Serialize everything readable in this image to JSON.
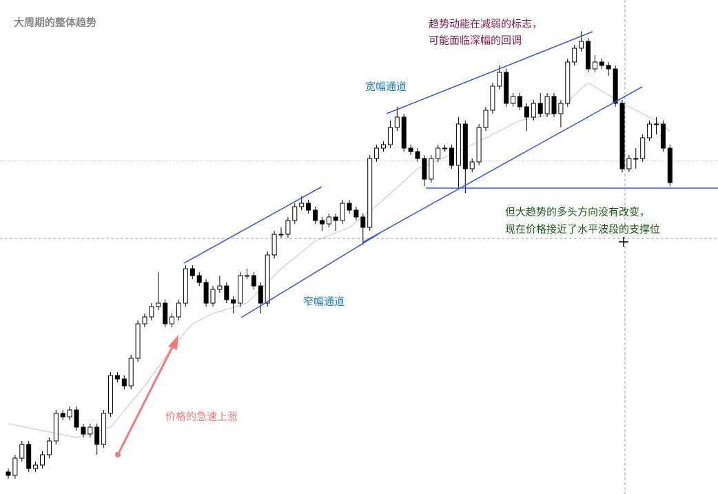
{
  "chart_data": {
    "type": "candlestick",
    "title": "大周期的整体趋势",
    "annotations": {
      "weakening": [
        "趋势动能在减弱的标志，",
        "可能面临深幅的回调"
      ],
      "wide_channel": "宽幅通道",
      "narrow_channel": "窄幅通道",
      "support": [
        "但大趋势的多头方向没有改变，",
        "现在价格接近了水平波段的支撑位"
      ],
      "surge": "价格的急速上涨"
    },
    "ylim": [
      0,
      71.7
    ],
    "bull_color": "#ffffff",
    "bear_color": "#000000",
    "ma_color": "#cccccc",
    "open": [
      3.2,
      2.7,
      5.2,
      7.2,
      3.7,
      4.2,
      5.7,
      7.7,
      11.7,
      11.2,
      12.2,
      9.7,
      8.7,
      9.7,
      7.2,
      11.7,
      17.2,
      16.7,
      15.7,
      19.7,
      24.7,
      25.7,
      27.2,
      27.7,
      24.7,
      25.7,
      27.7,
      32.7,
      31.7,
      30.7,
      27.7,
      29.7,
      30.2,
      28.2,
      27.7,
      31.7,
      31.7,
      30.2,
      27.7,
      34.7,
      37.7,
      37.7,
      39.7,
      41.7,
      42.2,
      41.2,
      39.7,
      39.2,
      40.2,
      39.7,
      42.2,
      41.2,
      40.2,
      38.7,
      48.7,
      50.2,
      50.7,
      53.2,
      54.7,
      50.2,
      49.7,
      48.7,
      45.7,
      48.7,
      50.2,
      50.2,
      47.7,
      53.7,
      47.2,
      48.2,
      53.2,
      55.7,
      59.2,
      61.2,
      56.7,
      57.7,
      56.2,
      54.7,
      56.7,
      55.2,
      57.7,
      55.2,
      56.7,
      62.7,
      64.7,
      65.7,
      61.7,
      62.7,
      62.2,
      61.7,
      56.7,
      47.2,
      48.7,
      48.7,
      51.7,
      53.7,
      53.7,
      50.2
    ],
    "high": [
      3.7,
      5.7,
      7.7,
      7.7,
      4.7,
      6.2,
      8.2,
      12.2,
      12.2,
      12.7,
      12.7,
      10.2,
      10.2,
      10.2,
      12.2,
      17.7,
      17.7,
      17.2,
      20.2,
      25.2,
      26.2,
      27.7,
      32.2,
      28.2,
      26.2,
      28.2,
      33.2,
      33.2,
      32.2,
      31.2,
      30.2,
      31.7,
      30.7,
      28.7,
      32.2,
      32.7,
      32.2,
      30.7,
      35.2,
      38.2,
      38.7,
      40.2,
      42.2,
      43.2,
      42.7,
      41.7,
      40.2,
      40.7,
      40.7,
      42.7,
      42.7,
      41.7,
      40.7,
      49.2,
      50.7,
      51.2,
      54.2,
      56.2,
      55.2,
      50.7,
      50.2,
      49.2,
      49.2,
      50.7,
      50.7,
      50.7,
      54.7,
      54.2,
      48.7,
      53.7,
      56.2,
      59.7,
      62.2,
      61.7,
      58.2,
      58.2,
      56.7,
      57.2,
      58.2,
      58.2,
      58.2,
      57.2,
      63.2,
      65.2,
      67.2,
      66.2,
      63.7,
      63.2,
      62.7,
      62.2,
      57.2,
      49.2,
      50.2,
      52.2,
      54.2,
      54.7,
      54.2,
      50.7
    ],
    "low": [
      2.2,
      2.2,
      4.7,
      3.2,
      3.2,
      3.7,
      5.2,
      7.2,
      10.7,
      10.7,
      9.2,
      8.2,
      8.2,
      5.7,
      6.7,
      11.2,
      16.2,
      15.2,
      15.2,
      19.2,
      24.2,
      25.2,
      26.7,
      24.2,
      24.2,
      25.2,
      27.2,
      31.2,
      30.2,
      27.2,
      27.2,
      29.2,
      27.7,
      26.2,
      27.2,
      31.2,
      29.7,
      26.2,
      27.2,
      34.2,
      37.2,
      37.2,
      39.2,
      41.2,
      40.7,
      39.2,
      38.2,
      38.7,
      38.2,
      39.2,
      40.7,
      39.7,
      36.2,
      38.2,
      48.2,
      49.7,
      50.2,
      52.7,
      49.7,
      49.2,
      48.2,
      44.7,
      45.2,
      48.2,
      49.7,
      47.2,
      44.2,
      43.7,
      46.7,
      47.7,
      52.7,
      55.2,
      58.7,
      56.2,
      56.2,
      55.7,
      52.7,
      54.2,
      54.7,
      54.7,
      54.7,
      53.2,
      56.2,
      62.2,
      64.2,
      61.2,
      61.2,
      61.7,
      60.7,
      56.2,
      46.7,
      46.7,
      47.2,
      48.2,
      51.2,
      52.2,
      49.7,
      44.7
    ],
    "close": [
      2.7,
      5.2,
      7.2,
      3.7,
      4.2,
      5.7,
      7.7,
      11.7,
      11.2,
      12.2,
      9.7,
      8.7,
      9.7,
      7.2,
      11.7,
      17.2,
      16.7,
      15.7,
      19.7,
      24.7,
      25.7,
      27.2,
      27.7,
      24.7,
      25.7,
      27.7,
      32.7,
      31.7,
      30.7,
      27.7,
      29.7,
      30.2,
      28.2,
      27.7,
      31.7,
      31.7,
      30.2,
      27.7,
      34.7,
      37.7,
      37.7,
      39.7,
      41.7,
      42.2,
      41.2,
      39.7,
      39.2,
      40.2,
      39.7,
      42.2,
      41.2,
      40.2,
      38.7,
      48.7,
      50.2,
      50.7,
      53.2,
      54.7,
      50.2,
      49.7,
      48.7,
      45.7,
      48.7,
      50.2,
      50.2,
      47.7,
      53.7,
      47.2,
      48.2,
      53.2,
      55.7,
      59.2,
      61.2,
      56.7,
      57.7,
      56.2,
      54.7,
      56.7,
      55.2,
      57.7,
      55.2,
      56.7,
      62.7,
      64.7,
      65.7,
      61.7,
      62.7,
      62.2,
      61.7,
      56.7,
      47.2,
      48.7,
      48.7,
      51.7,
      53.7,
      53.7,
      50.2,
      45.2
    ],
    "ma": {
      "x": [
        0,
        10,
        15,
        20,
        24,
        27,
        30,
        35,
        40,
        45,
        50,
        55,
        60,
        66,
        70,
        75,
        80,
        85,
        90,
        95,
        97
      ],
      "values": [
        10.2,
        8.2,
        9.7,
        15.7,
        21.2,
        24.7,
        26.2,
        27.7,
        32.7,
        36.7,
        38.7,
        42.7,
        47.2,
        49.7,
        51.7,
        54.2,
        55.2,
        59.7,
        56.7,
        54.2,
        52.7
      ]
    }
  }
}
